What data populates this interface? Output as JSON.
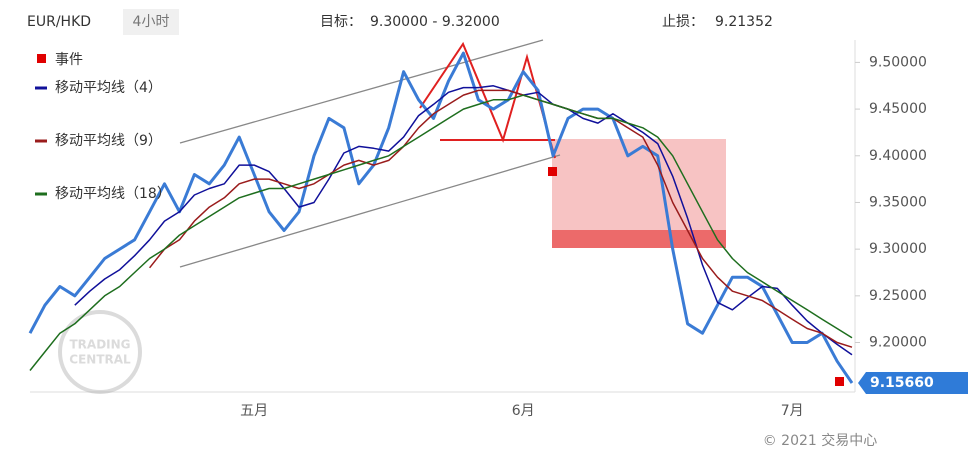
{
  "chart_data": {
    "type": "line",
    "symbol": "EUR/HKD",
    "interval": "4小时",
    "target_label": "目标：",
    "target_text": "9.30000 - 9.32000",
    "stop_label": "止损：",
    "stop_text": "9.21352",
    "event_label": "事件",
    "watermark": [
      "TRADING",
      "CENTRAL"
    ],
    "copyright": "© 2021 交易中心",
    "categories": [
      null,
      null,
      null,
      null,
      null,
      null,
      null,
      null,
      null,
      null,
      null,
      null,
      null,
      null,
      null,
      "五月",
      null,
      null,
      null,
      null,
      null,
      null,
      null,
      null,
      null,
      null,
      null,
      null,
      null,
      null,
      null,
      null,
      null,
      "6月",
      null,
      null,
      null,
      null,
      null,
      null,
      null,
      null,
      null,
      null,
      null,
      null,
      null,
      null,
      null,
      null,
      null,
      "7月",
      null,
      null,
      null,
      null
    ],
    "values": [
      9.21,
      9.24,
      9.26,
      9.25,
      9.27,
      9.29,
      9.3,
      9.31,
      9.34,
      9.37,
      9.34,
      9.38,
      9.37,
      9.39,
      9.42,
      9.38,
      9.34,
      9.32,
      9.34,
      9.4,
      9.44,
      9.43,
      9.37,
      9.39,
      9.43,
      9.49,
      9.46,
      9.44,
      9.48,
      9.51,
      9.46,
      9.45,
      9.46,
      9.49,
      9.47,
      9.4,
      9.44,
      9.45,
      9.45,
      9.44,
      9.4,
      9.41,
      9.4,
      9.3,
      9.22,
      9.21,
      9.24,
      9.27,
      9.27,
      9.26,
      9.23,
      9.2,
      9.2,
      9.21,
      9.18,
      9.1566
    ],
    "color": "#3a7bd5",
    "last_price": {
      "value": 9.1566,
      "label": "9.15660"
    },
    "series": [
      {
        "name": "移动平均线（4）",
        "color": "#10109a",
        "values": [
          null,
          null,
          null,
          9.24,
          9.255,
          9.268,
          9.278,
          9.293,
          9.31,
          9.33,
          9.34,
          9.358,
          9.365,
          9.37,
          9.39,
          9.39,
          9.383,
          9.365,
          9.345,
          9.35,
          9.375,
          9.403,
          9.41,
          9.408,
          9.405,
          9.42,
          9.443,
          9.455,
          9.468,
          9.473,
          9.473,
          9.475,
          9.47,
          9.465,
          9.468,
          9.455,
          9.45,
          9.44,
          9.435,
          9.445,
          9.435,
          9.425,
          9.413,
          9.378,
          9.333,
          9.283,
          9.243,
          9.235,
          9.248,
          9.26,
          9.258,
          9.24,
          9.223,
          9.21,
          9.198,
          9.187
        ]
      },
      {
        "name": "移动平均线（9）",
        "color": "#9a1c1c",
        "values": [
          null,
          null,
          null,
          null,
          null,
          null,
          null,
          null,
          9.28,
          9.3,
          9.31,
          9.33,
          9.345,
          9.355,
          9.37,
          9.375,
          9.375,
          9.37,
          9.365,
          9.37,
          9.38,
          9.39,
          9.395,
          9.39,
          9.395,
          9.41,
          9.43,
          9.445,
          9.455,
          9.465,
          9.47,
          9.47,
          9.47,
          9.465,
          9.46,
          9.455,
          9.45,
          9.445,
          9.44,
          9.44,
          9.43,
          9.42,
          9.39,
          9.35,
          9.32,
          9.29,
          9.27,
          9.255,
          9.25,
          9.245,
          9.235,
          9.225,
          9.215,
          9.21,
          9.2,
          9.195
        ]
      },
      {
        "name": "移动平均线（18）",
        "color": "#1e6e1e",
        "values": [
          9.17,
          9.19,
          9.21,
          9.22,
          9.235,
          9.25,
          9.26,
          9.275,
          9.29,
          9.3,
          9.315,
          9.325,
          9.335,
          9.345,
          9.355,
          9.36,
          9.365,
          9.365,
          9.37,
          9.375,
          9.38,
          9.385,
          9.39,
          9.395,
          9.4,
          9.41,
          9.42,
          9.43,
          9.44,
          9.45,
          9.455,
          9.46,
          9.46,
          9.465,
          9.46,
          9.455,
          9.45,
          9.445,
          9.44,
          9.44,
          9.435,
          9.43,
          9.42,
          9.4,
          9.37,
          9.34,
          9.31,
          9.29,
          9.275,
          9.265,
          9.255,
          9.245,
          9.235,
          9.225,
          9.215,
          9.205
        ]
      }
    ],
    "ylim": [
      9.147,
      9.524
    ],
    "yticks": [
      {
        "value": 9.2,
        "label": "9.20000"
      },
      {
        "value": 9.25,
        "label": "9.25000"
      },
      {
        "value": 9.3,
        "label": "9.30000"
      },
      {
        "value": 9.35,
        "label": "9.35000"
      },
      {
        "value": 9.4,
        "label": "9.40000"
      },
      {
        "value": 9.45,
        "label": "9.45000"
      },
      {
        "value": 9.5,
        "label": "9.50000"
      }
    ],
    "legend": "top-left"
  }
}
